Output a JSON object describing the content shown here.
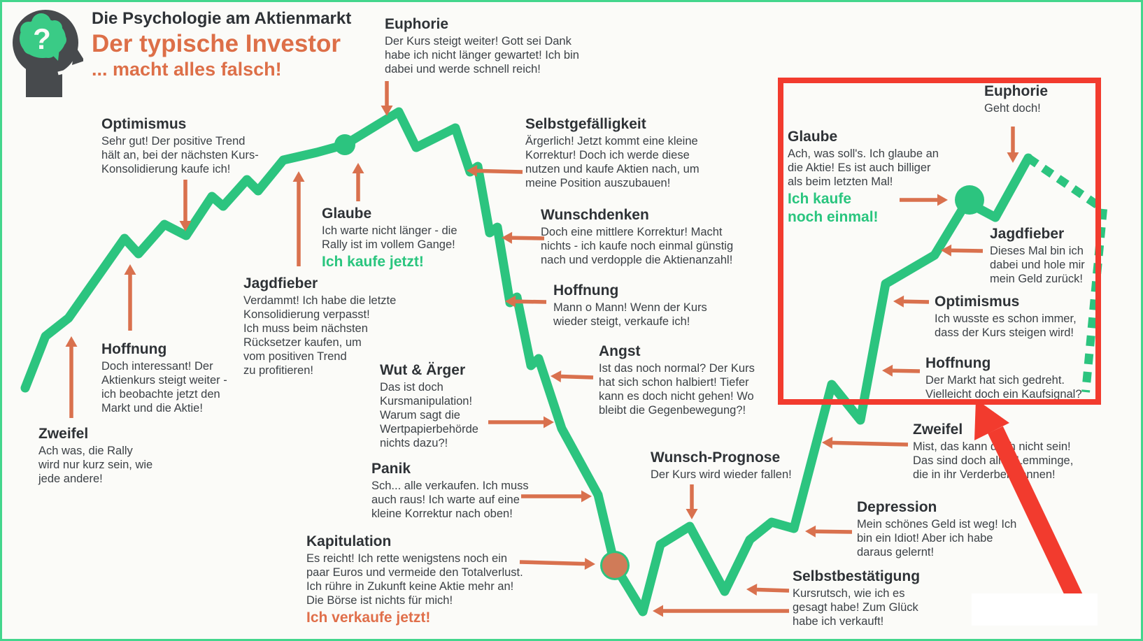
{
  "header": {
    "title": "Die Psychologie am Aktienmarkt",
    "subtitle": "Der typische Investor",
    "tagline": "... macht alles falsch!"
  },
  "logo": {
    "icon": "head-brain-question-icon",
    "question_mark": "?"
  },
  "colors": {
    "line_green": "#2cc47f",
    "arrow_orange": "#d9714e",
    "accent_green_text": "#29c57e",
    "accent_orange_text": "#e06f4a",
    "highlight_red": "#f23b2e",
    "heading_dark": "#2e3236"
  },
  "stages": [
    {
      "id": "zweifel-1",
      "title": "Zweifel",
      "body": "Ach was, die Rally\nwird nur kurz sein, wie\njede andere!"
    },
    {
      "id": "hoffnung-1",
      "title": "Hoffnung",
      "body": "Doch interessant! Der\nAktienkurs steigt weiter -\nich beobachte jetzt den\nMarkt und die Aktie!"
    },
    {
      "id": "optimismus-1",
      "title": "Optimismus",
      "body": "Sehr gut! Der positive Trend\nhält an, bei der nächsten Kurs-\nKonsolidierung kaufe ich!"
    },
    {
      "id": "jagdfieber-1",
      "title": "Jagdfieber",
      "body": "Verdammt! Ich habe die letzte\nKonsolidierung verpasst!\nIch muss beim nächsten\nRücksetzer kaufen, um\nvom positiven Trend\nzu profitieren!"
    },
    {
      "id": "glaube-1",
      "title": "Glaube",
      "body": "Ich warte nicht länger - die\nRally ist im vollem Gange!",
      "highlight": "Ich kaufe jetzt!",
      "highlight_color": "green"
    },
    {
      "id": "euphorie-1",
      "title": "Euphorie",
      "body": "Der Kurs steigt weiter! Gott sei Dank\nhabe ich nicht länger gewartet! Ich bin\ndabei und werde schnell reich!"
    },
    {
      "id": "selbstgefaelligkeit",
      "title": "Selbstgefälligkeit",
      "body": "Ärgerlich! Jetzt kommt eine kleine\nKorrektur! Doch ich werde diese\nnutzen und kaufe Aktien nach, um\nmeine Position auszubauen!"
    },
    {
      "id": "wunschdenken",
      "title": "Wunschdenken",
      "body": "Doch eine mittlere Korrektur! Macht\nnichts - ich kaufe noch einmal günstig\nnach und verdopple die Aktienanzahl!"
    },
    {
      "id": "hoffnung-2",
      "title": "Hoffnung",
      "body": "Mann o Mann! Wenn der Kurs\nwieder steigt, verkaufe ich!"
    },
    {
      "id": "angst",
      "title": "Angst",
      "body": "Ist das noch normal? Der Kurs\nhat sich schon halbiert! Tiefer\nkann es doch nicht gehen! Wo\nbleibt die Gegenbewegung?!"
    },
    {
      "id": "wut-aerger",
      "title": "Wut & Ärger",
      "body": "Das ist doch\nKursmanipulation!\nWarum sagt die\nWertpapierbehörde\nnichts dazu?!"
    },
    {
      "id": "panik",
      "title": "Panik",
      "body": "Sch... alle verkaufen. Ich muss\nauch raus! Ich warte auf eine\nkleine Korrektur nach oben!"
    },
    {
      "id": "kapitulation",
      "title": "Kapitulation",
      "body": "Es reicht! Ich rette wenigstens noch ein\npaar Euros und vermeide den Totalverlust.\nIch rühre in Zukunft keine Aktie mehr an!\nDie Börse ist nichts für mich!",
      "highlight": "Ich verkaufe jetzt!",
      "highlight_color": "orange"
    },
    {
      "id": "wunsch-prognose",
      "title": "Wunsch-Prognose",
      "body": "Der Kurs wird wieder fallen!"
    },
    {
      "id": "selbstbestaetigung",
      "title": "Selbstbestätigung",
      "body": "Kursrutsch, wie ich es\ngesagt habe! Zum Glück\nhabe ich verkauft!"
    },
    {
      "id": "depression",
      "title": "Depression",
      "body": "Mein schönes Geld ist weg! Ich\nbin ein Idiot! Aber ich habe\ndaraus gelernt!"
    },
    {
      "id": "zweifel-2",
      "title": "Zweifel",
      "body": "Mist, das kann doch nicht sein!\nDas sind doch alles Lemminge,\ndie in ihr Verderben rennen!"
    },
    {
      "id": "hoffnung-3",
      "title": "Hoffnung",
      "body": "Der Markt hat sich gedreht.\nVielleicht doch ein Kaufsignal?"
    },
    {
      "id": "optimismus-2",
      "title": "Optimismus",
      "body": "Ich wusste es schon immer,\ndass der Kurs steigen wird!"
    },
    {
      "id": "jagdfieber-2",
      "title": "Jagdfieber",
      "body": "Dieses Mal bin ich\ndabei und hole mir\nmein Geld zurück!"
    },
    {
      "id": "glaube-2",
      "title": "Glaube",
      "body": "Ach, was soll's. Ich glaube an\ndie Aktie! Es ist auch billiger\nals beim letzten Mal!",
      "highlight": "Ich kaufe\nnoch einmal!",
      "highlight_color": "green"
    },
    {
      "id": "euphorie-2",
      "title": "Euphorie",
      "body": "Geht doch!"
    }
  ]
}
